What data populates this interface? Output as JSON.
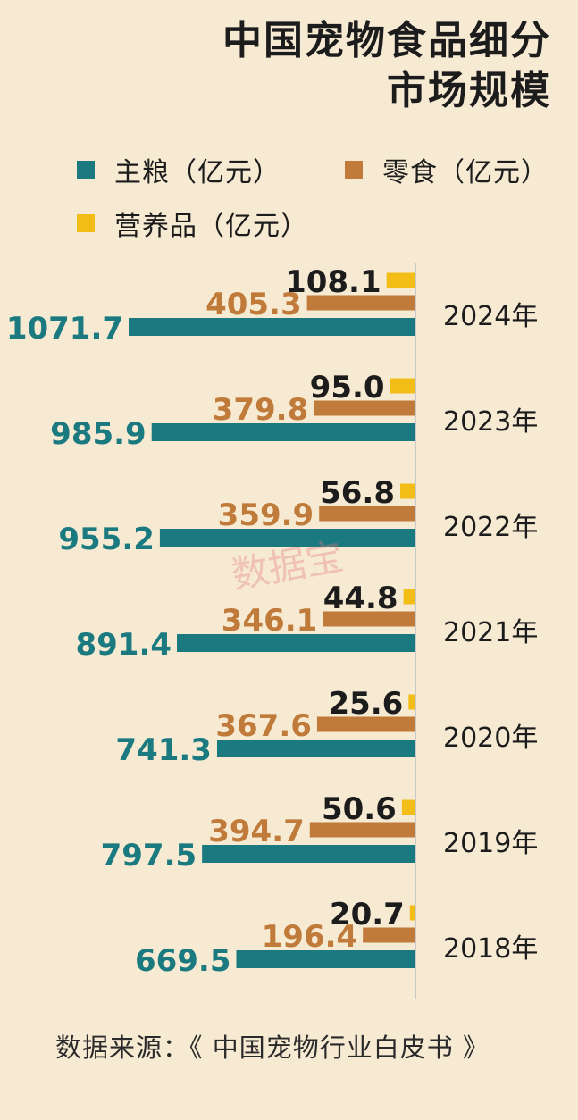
{
  "title_line1": "中国宠物食品细分",
  "title_line2": "市场规模",
  "source": "数据来源：《 中国宠物行业白皮书 》",
  "watermark": "数据宝",
  "colors": {
    "staple": "#1a7a80",
    "snack": "#c07a3a",
    "supplement": "#f2bd17",
    "text_dark": "#1c1c1c",
    "axis": "#c9c9c9"
  },
  "chart_data": {
    "type": "bar",
    "orientation": "horizontal",
    "title": "中国宠物食品细分市场规模",
    "legend_position": "top-left",
    "categories": [
      "2024年",
      "2023年",
      "2022年",
      "2021年",
      "2020年",
      "2019年",
      "2018年"
    ],
    "series": [
      {
        "name": "营养品（亿元）",
        "values": [
          108.1,
          95.0,
          56.8,
          44.8,
          25.6,
          50.6,
          20.7
        ]
      },
      {
        "name": "零食（亿元）",
        "values": [
          405.3,
          379.8,
          359.9,
          346.1,
          367.6,
          394.7,
          196.4
        ]
      },
      {
        "name": "主粮（亿元）",
        "values": [
          1071.7,
          985.9,
          955.2,
          891.4,
          741.3,
          797.5,
          669.5
        ]
      }
    ],
    "value_labels": {
      "supplement": [
        "108.1",
        "95.0",
        "56.8",
        "44.8",
        "25.6",
        "50.6",
        "20.7"
      ],
      "snack": [
        "405.3",
        "379.8",
        "359.9",
        "346.1",
        "367.6",
        "394.7",
        "196.4"
      ],
      "staple": [
        "1071.7",
        "985.9",
        "955.2",
        "891.4",
        "741.3",
        "797.5",
        "669.5"
      ]
    }
  }
}
